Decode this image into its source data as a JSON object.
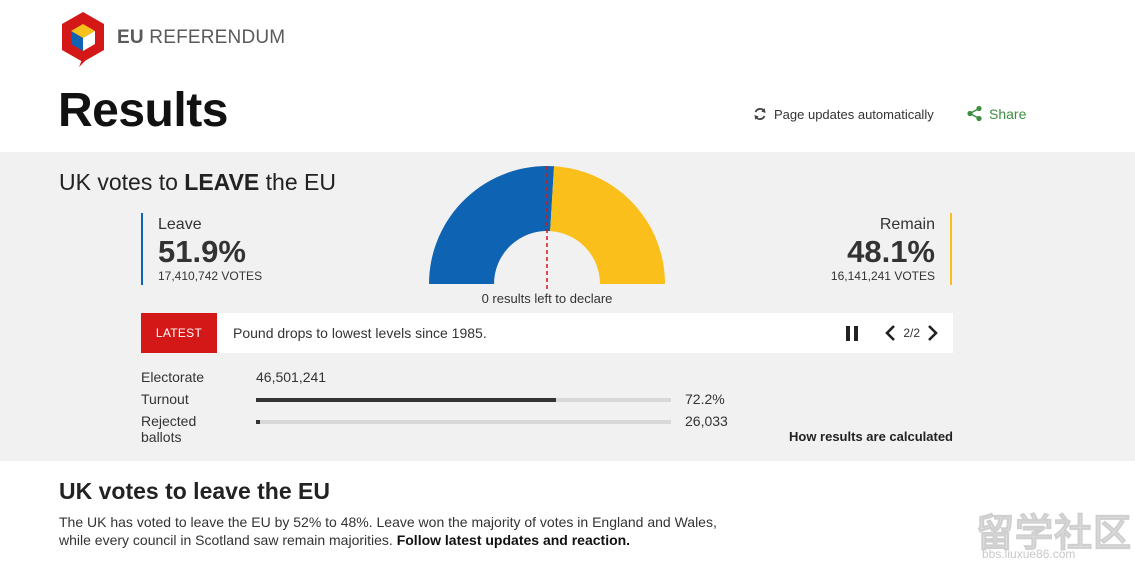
{
  "brand": {
    "prefix": "EU",
    "name": "REFERENDUM",
    "colors": {
      "red": "#d41817",
      "blue": "#0e63b3",
      "yellow": "#fbbf1b"
    }
  },
  "header": {
    "title": "Results",
    "auto_update_label": "Page updates automatically",
    "share_label": "Share"
  },
  "summary": {
    "headline_prefix": "UK votes to ",
    "headline_strong": "LEAVE",
    "headline_suffix": " the EU",
    "leave": {
      "label": "Leave",
      "percent": "51.9%",
      "votes": "17,410,742 VOTES",
      "share": 51.9,
      "color": "#0e63b3"
    },
    "remain": {
      "label": "Remain",
      "percent": "48.1%",
      "votes": "16,141,241 VOTES",
      "share": 48.1,
      "color": "#fbbf1b"
    },
    "left_to_declare": "0 results left to declare"
  },
  "ticker": {
    "badge": "LATEST",
    "text": "Pound drops to lowest levels since 1985.",
    "pager": "2/2"
  },
  "stats": {
    "electorate_label": "Electorate",
    "electorate_value": "46,501,241",
    "turnout_label": "Turnout",
    "turnout_value": "72.2%",
    "turnout_fraction": 0.722,
    "rejected_label": "Rejected ballots",
    "rejected_value": "26,033",
    "rejected_fraction": 0.01,
    "how_link": "How results are calculated"
  },
  "article": {
    "heading": "UK votes to leave the EU",
    "body": "The UK has voted to leave the EU by 52% to 48%. Leave won the majority of votes in England and Wales, while every council in Scotland saw remain majorities. ",
    "link": "Follow latest updates and reaction."
  },
  "watermark": {
    "big": "留学社区",
    "small": "bbs.liuxue86.com"
  }
}
